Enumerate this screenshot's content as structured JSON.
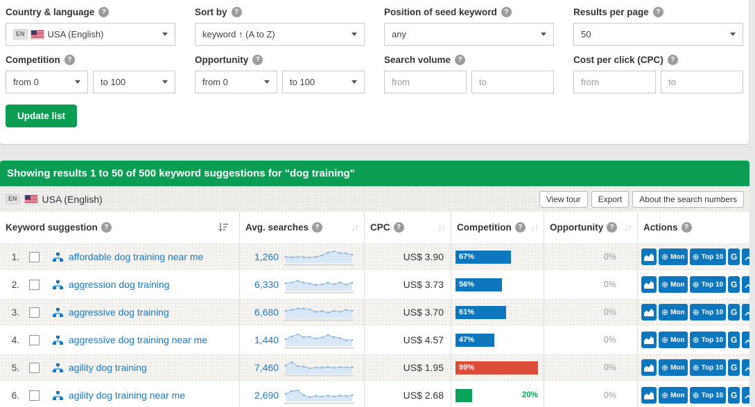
{
  "colors": {
    "accent_green": "#0b9d51",
    "link_blue": "#1779c2",
    "bar_blue": "#0e76bd",
    "bar_red": "#dd4b39",
    "bar_green": "#0aa35b",
    "spark_line": "#8fb8dd",
    "spark_fill": "#d8e7f5",
    "spark_dot": "#7eaed8",
    "spark_base": "#d9d9d9"
  },
  "filters": {
    "country": {
      "label": "Country & language",
      "badge": "EN",
      "value": "USA (English)"
    },
    "sort_by": {
      "label": "Sort by",
      "value": "keyword ↑ (A to Z)"
    },
    "seed_position": {
      "label": "Position of seed keyword",
      "value": "any"
    },
    "results_per_page": {
      "label": "Results per page",
      "value": "50"
    },
    "competition": {
      "label": "Competition",
      "from": "from 0",
      "to": "to 100"
    },
    "opportunity": {
      "label": "Opportunity",
      "from": "from 0",
      "to": "to 100"
    },
    "search_volume": {
      "label": "Search volume",
      "from_placeholder": "from",
      "to_placeholder": "to"
    },
    "cpc": {
      "label": "Cost per click (CPC)",
      "from_placeholder": "from",
      "to_placeholder": "to"
    },
    "update_button": "Update list"
  },
  "banner": {
    "text": "Showing results 1 to 50 of 500 keyword suggestions for \"dog training\""
  },
  "toolbar": {
    "badge": "EN",
    "locale": "USA (English)",
    "view_tour": "View tour",
    "export": "Export",
    "about": "About the search numbers"
  },
  "table": {
    "headers": {
      "keyword": "Keyword suggestion",
      "avg": "Avg. searches",
      "cpc": "CPC",
      "competition": "Competition",
      "opportunity": "Opportunity",
      "actions": "Actions"
    },
    "action_labels": {
      "mon": "Mon",
      "top10": "Top 10",
      "g": "G"
    },
    "rows": [
      {
        "num": "1.",
        "keyword": "affordable dog training near me",
        "avg": "1,260",
        "trend": [
          0.45,
          0.42,
          0.45,
          0.43,
          0.4,
          0.45,
          0.55,
          0.75,
          0.85,
          0.72,
          0.7,
          0.6
        ],
        "cpc": "US$ 3.90",
        "competition": {
          "value": 67,
          "color": "#0e76bd",
          "text_inside": true
        },
        "opportunity": "0%"
      },
      {
        "num": "2.",
        "keyword": "aggression dog training",
        "avg": "6,330",
        "trend": [
          0.55,
          0.6,
          0.72,
          0.58,
          0.52,
          0.42,
          0.45,
          0.58,
          0.47,
          0.6,
          0.45,
          0.58
        ],
        "cpc": "US$ 3.73",
        "competition": {
          "value": 56,
          "color": "#0e76bd",
          "text_inside": true
        },
        "opportunity": "0%"
      },
      {
        "num": "3.",
        "keyword": "aggressive dog training",
        "avg": "6,680",
        "trend": [
          0.55,
          0.62,
          0.72,
          0.7,
          0.65,
          0.48,
          0.52,
          0.42,
          0.55,
          0.48,
          0.62,
          0.55
        ],
        "cpc": "US$ 3.70",
        "competition": {
          "value": 61,
          "color": "#0e76bd",
          "text_inside": true
        },
        "opportunity": "0%"
      },
      {
        "num": "4.",
        "keyword": "aggressive dog training near me",
        "avg": "1,440",
        "trend": [
          0.5,
          0.7,
          0.85,
          0.65,
          0.68,
          0.55,
          0.62,
          0.8,
          0.65,
          0.58,
          0.42,
          0.45
        ],
        "cpc": "US$ 4.57",
        "competition": {
          "value": 47,
          "color": "#0e76bd",
          "text_inside": true
        },
        "opportunity": "0%"
      },
      {
        "num": "5.",
        "keyword": "agility dog training",
        "avg": "7,460",
        "trend": [
          0.6,
          0.85,
          0.55,
          0.52,
          0.4,
          0.45,
          0.44,
          0.5,
          0.44,
          0.48,
          0.45,
          0.48
        ],
        "cpc": "US$ 1.95",
        "competition": {
          "value": 99,
          "color": "#dd4b39",
          "text_inside": true
        },
        "opportunity": "0%"
      },
      {
        "num": "6.",
        "keyword": "agility dog training near me",
        "avg": "2,690",
        "trend": [
          0.55,
          0.75,
          0.8,
          0.45,
          0.32,
          0.4,
          0.36,
          0.42,
          0.36,
          0.42,
          0.4,
          0.45
        ],
        "cpc": "US$ 2.68",
        "competition": {
          "value": 20,
          "color": "#0aa35b",
          "text_inside": false
        },
        "opportunity": "0%"
      }
    ]
  }
}
